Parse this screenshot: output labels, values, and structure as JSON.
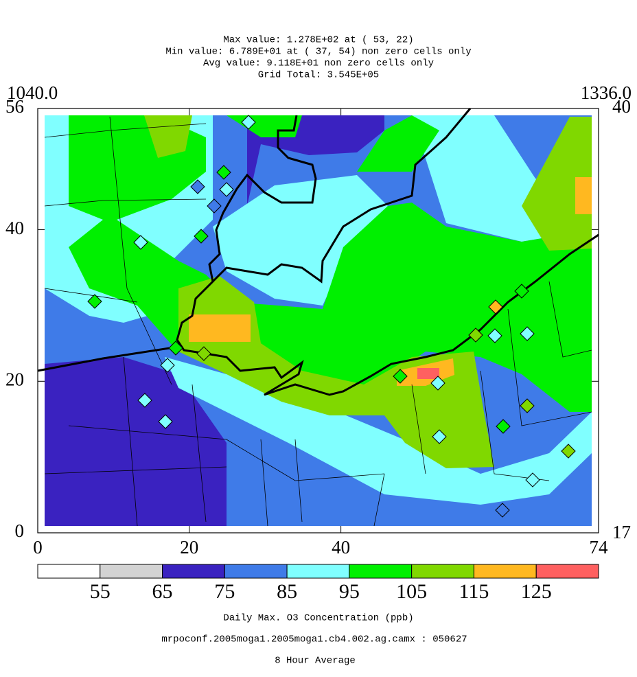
{
  "header": {
    "lines": [
      "Max value:  1.278E+02 at ( 53, 22)",
      "Min value:  6.789E+01 at ( 37, 54) non zero cells only",
      "Avg value:  9.118E+01 non zero cells only",
      "Grid Total:  3.545E+05"
    ]
  },
  "corners": {
    "top_left": "1040.0",
    "top_right": "1336.0",
    "right_top": "40",
    "right_bottom": "17"
  },
  "x_axis": {
    "lim": [
      0,
      74
    ],
    "ticks": [
      0,
      20,
      40,
      74
    ]
  },
  "y_axis": {
    "lim": [
      0,
      56
    ],
    "ticks": [
      0,
      20,
      40,
      56
    ]
  },
  "colorbar": {
    "colors": [
      "#ffffff",
      "#d3d3d3",
      "#3a22c0",
      "#3f7be8",
      "#80ffff",
      "#00f000",
      "#80d800",
      "#ffb820",
      "#ff6060"
    ],
    "labels": [
      55,
      65,
      75,
      85,
      95,
      105,
      115,
      125
    ]
  },
  "footer": {
    "lines": [
      "Daily Max. O3 Concentration (ppb)",
      "mrpoconf.2005moga1.2005moga1.cb4.002.ag.camx : 050627",
      "8 Hour Average"
    ]
  }
}
